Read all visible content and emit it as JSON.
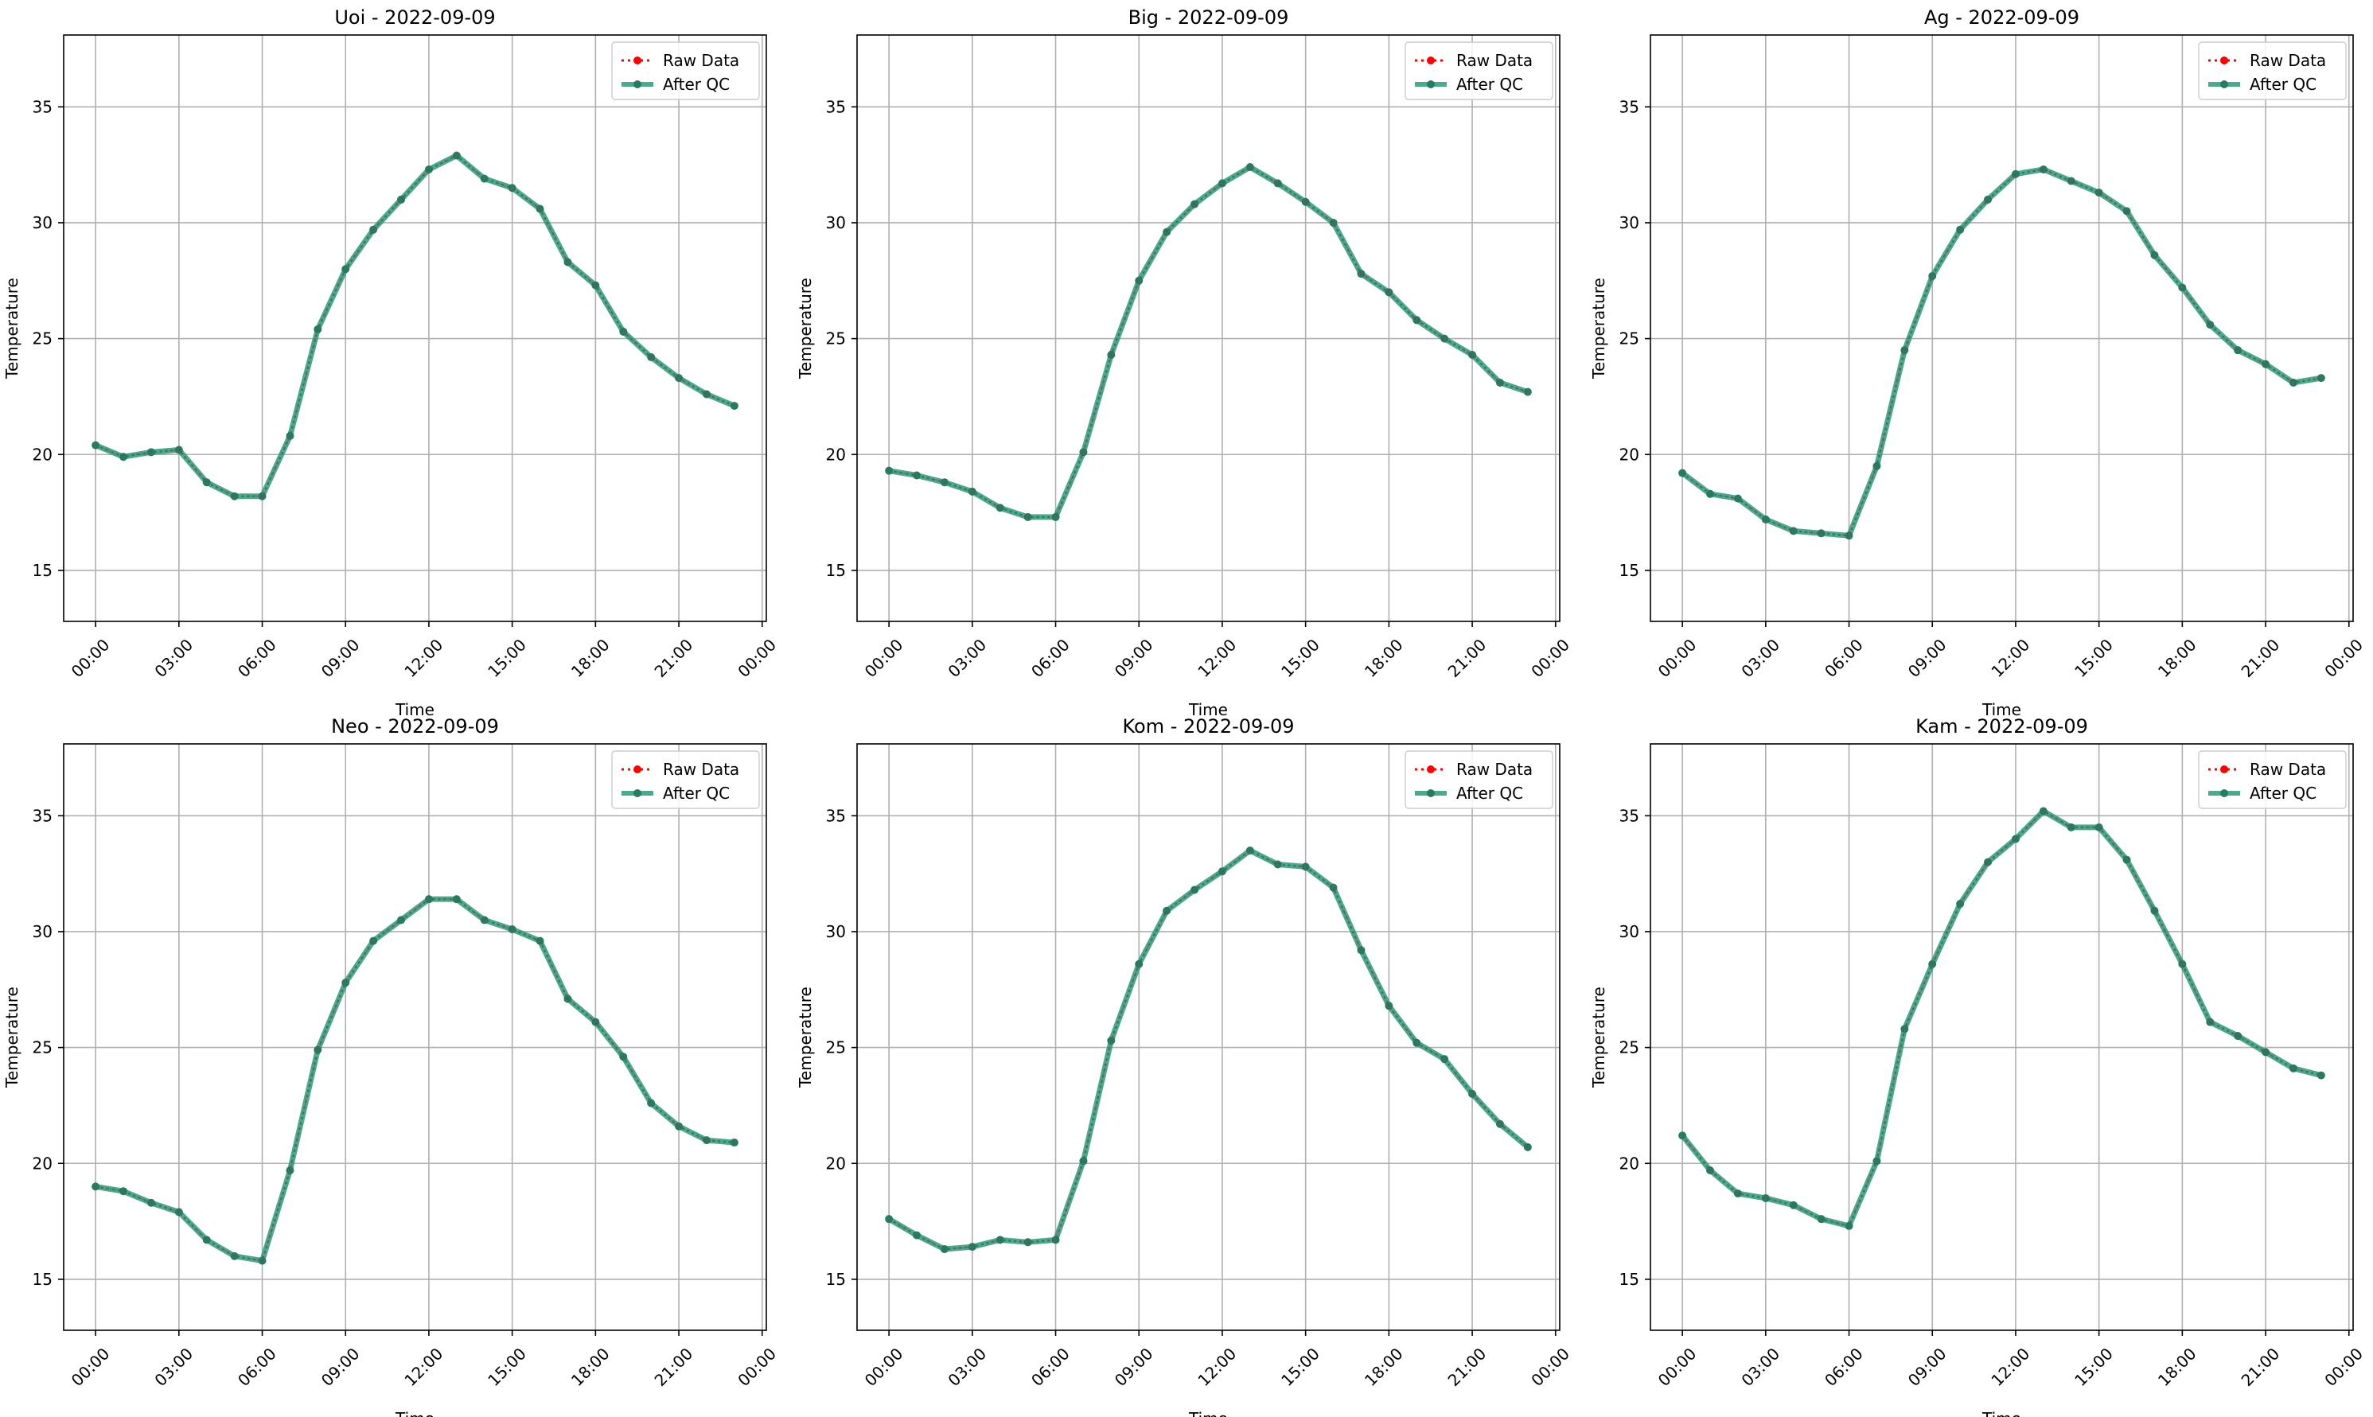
{
  "legend_labels": {
    "raw": "Raw Data",
    "qc": "After QC"
  },
  "colors": {
    "raw": "#ff0000",
    "qc": "#2e9a7a",
    "qc_marker": "#287a62",
    "grid": "#b0b0b0",
    "axis": "#000000"
  },
  "chart_data": [
    {
      "type": "line",
      "title": "Uoi - 2022-09-09",
      "xlabel": "Time",
      "ylabel": "Temperature",
      "ylim": [
        12.8,
        38.1
      ],
      "yticks": [
        15,
        20,
        25,
        30,
        35
      ],
      "xlim": [
        -1.15,
        24.15
      ],
      "xticks": [
        0,
        3,
        6,
        9,
        12,
        15,
        18,
        21,
        24
      ],
      "xtick_labels": [
        "00:00",
        "03:00",
        "06:00",
        "09:00",
        "12:00",
        "15:00",
        "18:00",
        "21:00",
        "00:00"
      ],
      "grid": true,
      "legend_position": "upper right",
      "x": [
        0,
        1,
        2,
        3,
        4,
        5,
        6,
        7,
        8,
        9,
        10,
        11,
        12,
        13,
        14,
        15,
        16,
        17,
        18,
        19,
        20,
        21,
        22,
        23
      ],
      "series": [
        {
          "name": "Raw Data",
          "values": [
            20.4,
            19.9,
            20.1,
            20.2,
            18.8,
            18.2,
            18.2,
            20.8,
            25.4,
            28.0,
            29.7,
            31.0,
            32.3,
            32.9,
            31.9,
            31.5,
            30.6,
            28.3,
            27.3,
            25.3,
            24.2,
            23.3,
            22.6,
            22.1
          ]
        },
        {
          "name": "After QC",
          "values": [
            20.4,
            19.9,
            20.1,
            20.2,
            18.8,
            18.2,
            18.2,
            20.8,
            25.4,
            28.0,
            29.7,
            31.0,
            32.3,
            32.9,
            31.9,
            31.5,
            30.6,
            28.3,
            27.3,
            25.3,
            24.2,
            23.3,
            22.6,
            22.1
          ]
        }
      ]
    },
    {
      "type": "line",
      "title": "Big - 2022-09-09",
      "xlabel": "Time",
      "ylabel": "Temperature",
      "ylim": [
        12.8,
        38.1
      ],
      "yticks": [
        15,
        20,
        25,
        30,
        35
      ],
      "xlim": [
        -1.15,
        24.15
      ],
      "xticks": [
        0,
        3,
        6,
        9,
        12,
        15,
        18,
        21,
        24
      ],
      "xtick_labels": [
        "00:00",
        "03:00",
        "06:00",
        "09:00",
        "12:00",
        "15:00",
        "18:00",
        "21:00",
        "00:00"
      ],
      "grid": true,
      "legend_position": "upper right",
      "x": [
        0,
        1,
        2,
        3,
        4,
        5,
        6,
        7,
        8,
        9,
        10,
        11,
        12,
        13,
        14,
        15,
        16,
        17,
        18,
        19,
        20,
        21,
        22,
        23
      ],
      "series": [
        {
          "name": "Raw Data",
          "values": [
            19.3,
            19.1,
            18.8,
            18.4,
            17.7,
            17.3,
            17.3,
            20.1,
            24.3,
            27.5,
            29.6,
            30.8,
            31.7,
            32.4,
            31.7,
            30.9,
            30.0,
            27.8,
            27.0,
            25.8,
            25.0,
            24.3,
            23.1,
            22.7
          ]
        },
        {
          "name": "After QC",
          "values": [
            19.3,
            19.1,
            18.8,
            18.4,
            17.7,
            17.3,
            17.3,
            20.1,
            24.3,
            27.5,
            29.6,
            30.8,
            31.7,
            32.4,
            31.7,
            30.9,
            30.0,
            27.8,
            27.0,
            25.8,
            25.0,
            24.3,
            23.1,
            22.7
          ]
        }
      ]
    },
    {
      "type": "line",
      "title": "Ag - 2022-09-09",
      "xlabel": "Time",
      "ylabel": "Temperature",
      "ylim": [
        12.8,
        38.1
      ],
      "yticks": [
        15,
        20,
        25,
        30,
        35
      ],
      "xlim": [
        -1.15,
        24.15
      ],
      "xticks": [
        0,
        3,
        6,
        9,
        12,
        15,
        18,
        21,
        24
      ],
      "xtick_labels": [
        "00:00",
        "03:00",
        "06:00",
        "09:00",
        "12:00",
        "15:00",
        "18:00",
        "21:00",
        "00:00"
      ],
      "grid": true,
      "legend_position": "upper right",
      "x": [
        0,
        1,
        2,
        3,
        4,
        5,
        6,
        7,
        8,
        9,
        10,
        11,
        12,
        13,
        14,
        15,
        16,
        17,
        18,
        19,
        20,
        21,
        22,
        23
      ],
      "series": [
        {
          "name": "Raw Data",
          "values": [
            19.2,
            18.3,
            18.1,
            17.2,
            16.7,
            16.6,
            16.5,
            19.5,
            24.5,
            27.7,
            29.7,
            31.0,
            32.1,
            32.3,
            31.8,
            31.3,
            30.5,
            28.6,
            27.2,
            25.6,
            24.5,
            23.9,
            23.1,
            23.3
          ]
        },
        {
          "name": "After QC",
          "values": [
            19.2,
            18.3,
            18.1,
            17.2,
            16.7,
            16.6,
            16.5,
            19.5,
            24.5,
            27.7,
            29.7,
            31.0,
            32.1,
            32.3,
            31.8,
            31.3,
            30.5,
            28.6,
            27.2,
            25.6,
            24.5,
            23.9,
            23.1,
            23.3
          ]
        }
      ]
    },
    {
      "type": "line",
      "title": "Neo - 2022-09-09",
      "xlabel": "Time",
      "ylabel": "Temperature",
      "ylim": [
        12.8,
        38.1
      ],
      "yticks": [
        15,
        20,
        25,
        30,
        35
      ],
      "xlim": [
        -1.15,
        24.15
      ],
      "xticks": [
        0,
        3,
        6,
        9,
        12,
        15,
        18,
        21,
        24
      ],
      "xtick_labels": [
        "00:00",
        "03:00",
        "06:00",
        "09:00",
        "12:00",
        "15:00",
        "18:00",
        "21:00",
        "00:00"
      ],
      "grid": true,
      "legend_position": "upper right",
      "x": [
        0,
        1,
        2,
        3,
        4,
        5,
        6,
        7,
        8,
        9,
        10,
        11,
        12,
        13,
        14,
        15,
        16,
        17,
        18,
        19,
        20,
        21,
        22,
        23
      ],
      "series": [
        {
          "name": "Raw Data",
          "values": [
            19.0,
            18.8,
            18.3,
            17.9,
            16.7,
            16.0,
            15.8,
            19.7,
            24.9,
            27.8,
            29.6,
            30.5,
            31.4,
            31.4,
            30.5,
            30.1,
            29.6,
            27.1,
            26.1,
            24.6,
            22.6,
            21.6,
            21.0,
            20.9
          ]
        },
        {
          "name": "After QC",
          "values": [
            19.0,
            18.8,
            18.3,
            17.9,
            16.7,
            16.0,
            15.8,
            19.7,
            24.9,
            27.8,
            29.6,
            30.5,
            31.4,
            31.4,
            30.5,
            30.1,
            29.6,
            27.1,
            26.1,
            24.6,
            22.6,
            21.6,
            21.0,
            20.9
          ]
        }
      ]
    },
    {
      "type": "line",
      "title": "Kom - 2022-09-09",
      "xlabel": "Time",
      "ylabel": "Temperature",
      "ylim": [
        12.8,
        38.1
      ],
      "yticks": [
        15,
        20,
        25,
        30,
        35
      ],
      "xlim": [
        -1.15,
        24.15
      ],
      "xticks": [
        0,
        3,
        6,
        9,
        12,
        15,
        18,
        21,
        24
      ],
      "xtick_labels": [
        "00:00",
        "03:00",
        "06:00",
        "09:00",
        "12:00",
        "15:00",
        "18:00",
        "21:00",
        "00:00"
      ],
      "grid": true,
      "legend_position": "upper right",
      "x": [
        0,
        1,
        2,
        3,
        4,
        5,
        6,
        7,
        8,
        9,
        10,
        11,
        12,
        13,
        14,
        15,
        16,
        17,
        18,
        19,
        20,
        21,
        22,
        23
      ],
      "series": [
        {
          "name": "Raw Data",
          "values": [
            17.6,
            16.9,
            16.3,
            16.4,
            16.7,
            16.6,
            16.7,
            20.1,
            25.3,
            28.6,
            30.9,
            31.8,
            32.6,
            33.5,
            32.9,
            32.8,
            31.9,
            29.2,
            26.8,
            25.2,
            24.5,
            23.0,
            21.7,
            20.7
          ]
        },
        {
          "name": "After QC",
          "values": [
            17.6,
            16.9,
            16.3,
            16.4,
            16.7,
            16.6,
            16.7,
            20.1,
            25.3,
            28.6,
            30.9,
            31.8,
            32.6,
            33.5,
            32.9,
            32.8,
            31.9,
            29.2,
            26.8,
            25.2,
            24.5,
            23.0,
            21.7,
            20.7
          ]
        }
      ]
    },
    {
      "type": "line",
      "title": "Kam - 2022-09-09",
      "xlabel": "Time",
      "ylabel": "Temperature",
      "ylim": [
        12.8,
        38.1
      ],
      "yticks": [
        15,
        20,
        25,
        30,
        35
      ],
      "xlim": [
        -1.15,
        24.15
      ],
      "xticks": [
        0,
        3,
        6,
        9,
        12,
        15,
        18,
        21,
        24
      ],
      "xtick_labels": [
        "00:00",
        "03:00",
        "06:00",
        "09:00",
        "12:00",
        "15:00",
        "18:00",
        "21:00",
        "00:00"
      ],
      "grid": true,
      "legend_position": "upper right",
      "x": [
        0,
        1,
        2,
        3,
        4,
        5,
        6,
        7,
        8,
        9,
        10,
        11,
        12,
        13,
        14,
        15,
        16,
        17,
        18,
        19,
        20,
        21,
        22,
        23
      ],
      "series": [
        {
          "name": "Raw Data",
          "values": [
            21.2,
            19.7,
            18.7,
            18.5,
            18.2,
            17.6,
            17.3,
            20.1,
            25.8,
            28.6,
            31.2,
            33.0,
            34.0,
            35.2,
            34.5,
            34.5,
            33.1,
            30.9,
            28.6,
            26.1,
            25.5,
            24.8,
            24.1,
            23.8
          ]
        },
        {
          "name": "After QC",
          "values": [
            21.2,
            19.7,
            18.7,
            18.5,
            18.2,
            17.6,
            17.3,
            20.1,
            25.8,
            28.6,
            31.2,
            33.0,
            34.0,
            35.2,
            34.5,
            34.5,
            33.1,
            30.9,
            28.6,
            26.1,
            25.5,
            24.8,
            24.1,
            23.8
          ]
        }
      ]
    }
  ]
}
